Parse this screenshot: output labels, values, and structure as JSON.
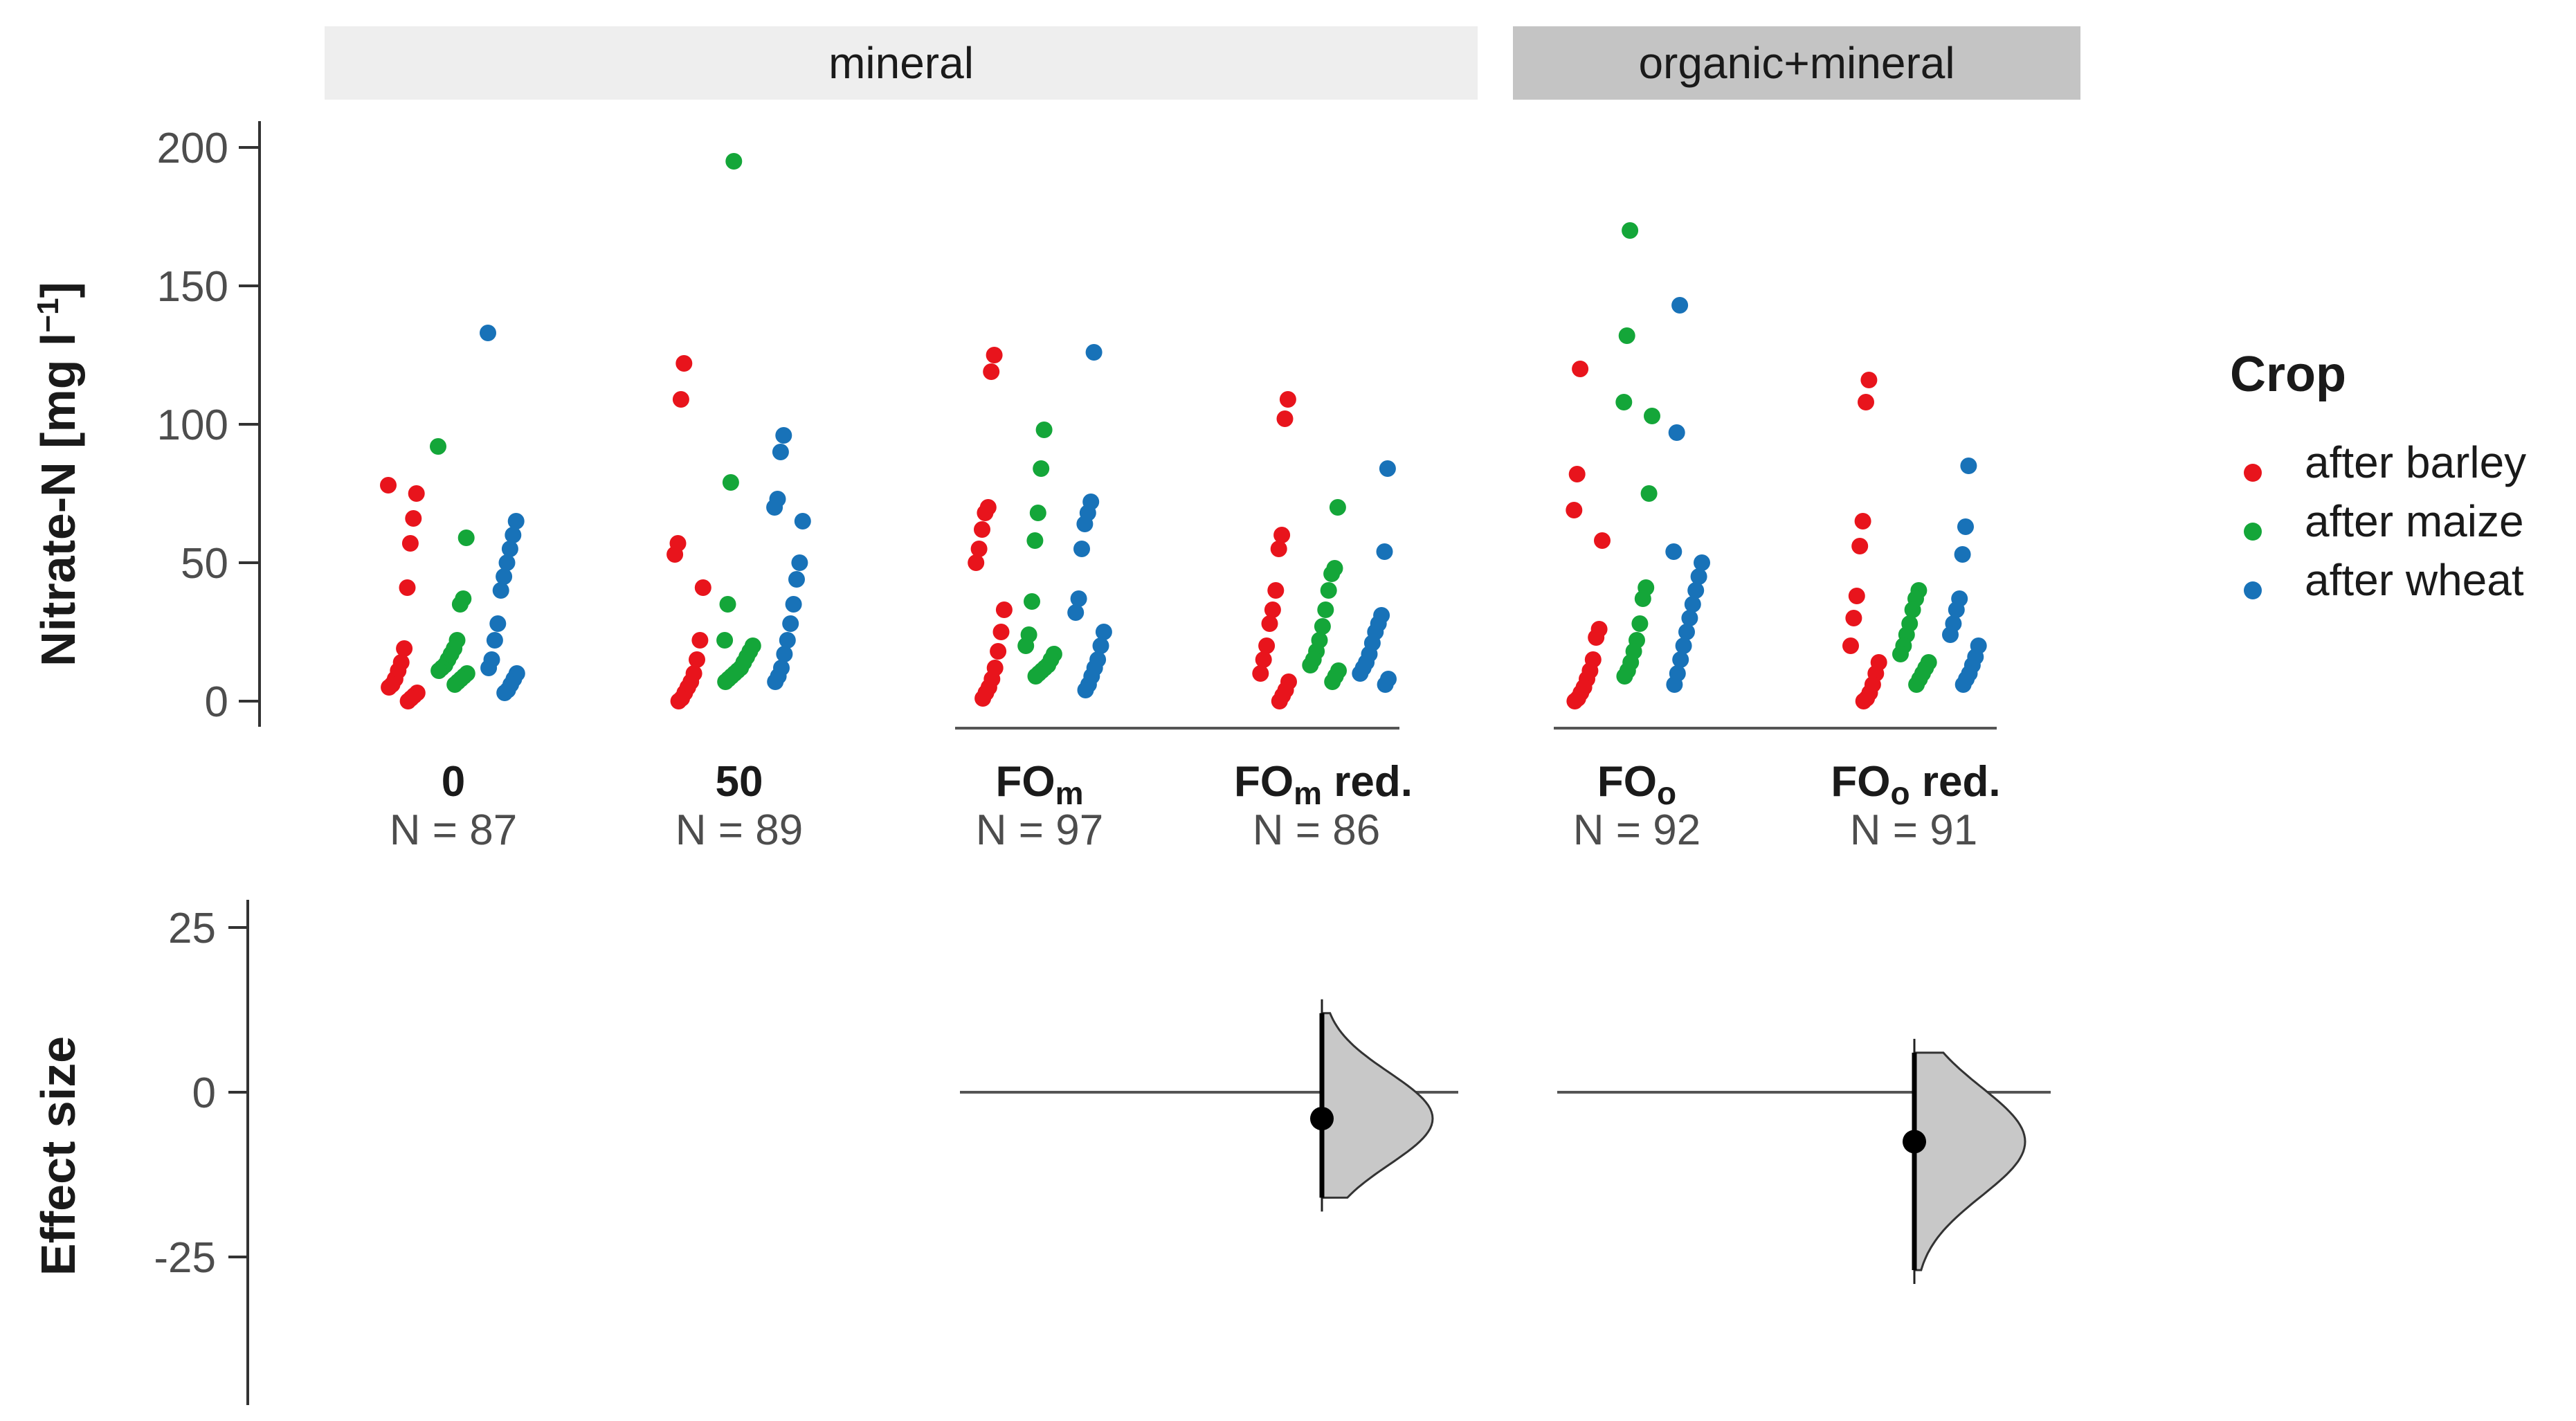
{
  "chart_data": {
    "type": "scatter",
    "strips": [
      {
        "label": "mineral",
        "color": "#eeeeee"
      },
      {
        "label": "organic+mineral",
        "color": "#c4c4c4"
      }
    ],
    "upper": {
      "ylabel": "Nitrate-N [mg l",
      "ylabel_sup": "−1",
      "ylabel_close": "]",
      "ylim": [
        0,
        200
      ],
      "yticks": [
        "0",
        "50",
        "100",
        "150",
        "200"
      ],
      "groups": [
        {
          "label": "0",
          "sub": "",
          "suffix": "",
          "n": "N = 87",
          "barley": [
            78,
            75,
            66,
            57,
            41,
            19,
            14,
            11,
            8,
            6,
            5,
            3,
            2,
            1,
            0
          ],
          "maize": [
            92,
            59,
            37,
            35,
            22,
            19,
            17,
            15,
            13,
            12,
            11,
            10,
            9,
            8,
            7,
            6
          ],
          "wheat": [
            133,
            65,
            60,
            55,
            50,
            45,
            40,
            28,
            22,
            15,
            12,
            10,
            8,
            6,
            4,
            3
          ]
        },
        {
          "label": "50",
          "sub": "",
          "suffix": "",
          "n": "N = 89",
          "barley": [
            122,
            109,
            57,
            53,
            41,
            22,
            15,
            10,
            7,
            5,
            3,
            1,
            0
          ],
          "maize": [
            195,
            79,
            35,
            22,
            20,
            18,
            16,
            14,
            12,
            11,
            10,
            9,
            8,
            7
          ],
          "wheat": [
            96,
            90,
            73,
            70,
            65,
            50,
            44,
            35,
            28,
            22,
            17,
            12,
            9,
            7
          ]
        },
        {
          "label": "FO",
          "sub": "m",
          "suffix": "",
          "n": "N = 97",
          "barley": [
            125,
            119,
            70,
            68,
            62,
            55,
            50,
            33,
            25,
            18,
            12,
            8,
            5,
            3,
            1
          ],
          "maize": [
            98,
            84,
            68,
            58,
            36,
            24,
            20,
            17,
            15,
            13,
            12,
            11,
            10,
            9
          ],
          "wheat": [
            126,
            72,
            68,
            64,
            55,
            37,
            32,
            25,
            20,
            15,
            12,
            9,
            6,
            4
          ]
        },
        {
          "label": "FO",
          "sub": "m",
          "suffix": " red.",
          "n": "N = 86",
          "barley": [
            109,
            102,
            60,
            55,
            40,
            33,
            28,
            20,
            15,
            10,
            7,
            4,
            2,
            0
          ],
          "maize": [
            70,
            48,
            46,
            40,
            33,
            27,
            22,
            18,
            15,
            13,
            11,
            9,
            7
          ],
          "wheat": [
            84,
            54,
            31,
            28,
            25,
            21,
            17,
            14,
            12,
            10,
            8,
            6
          ]
        },
        {
          "label": "FO",
          "sub": "o",
          "suffix": "",
          "n": "N = 92",
          "barley": [
            120,
            82,
            69,
            58,
            26,
            23,
            15,
            11,
            8,
            5,
            3,
            1,
            0
          ],
          "maize": [
            170,
            132,
            108,
            103,
            75,
            41,
            37,
            28,
            22,
            18,
            14,
            11,
            9
          ],
          "wheat": [
            143,
            97,
            54,
            50,
            45,
            40,
            35,
            30,
            25,
            20,
            15,
            10,
            6
          ]
        },
        {
          "label": "FO",
          "sub": "o",
          "suffix": " red.",
          "n": "N = 91",
          "barley": [
            116,
            108,
            65,
            56,
            38,
            30,
            20,
            14,
            10,
            6,
            3,
            1,
            0
          ],
          "maize": [
            40,
            37,
            33,
            28,
            24,
            20,
            17,
            14,
            12,
            10,
            8,
            6
          ],
          "wheat": [
            85,
            63,
            53,
            37,
            33,
            28,
            24,
            20,
            16,
            13,
            10,
            8,
            6
          ]
        }
      ]
    },
    "lower": {
      "ylabel": "Effect size",
      "ylim": [
        -45,
        28
      ],
      "yticks": [
        "25",
        "0",
        "-25"
      ],
      "ytick_values": [
        25,
        0,
        -25
      ],
      "effects": [
        {
          "group_index": 3,
          "reference_index": 2,
          "mean": -4,
          "ci": [
            -16,
            12
          ]
        },
        {
          "group_index": 5,
          "reference_index": 4,
          "mean": -7.5,
          "ci": [
            -27,
            6
          ]
        }
      ]
    },
    "legend": {
      "title": "Crop",
      "entries": [
        {
          "label": "after barley",
          "color": "#e8141c"
        },
        {
          "label": "after maize",
          "color": "#14a639"
        },
        {
          "label": "after wheat",
          "color": "#1872b8"
        }
      ]
    }
  }
}
